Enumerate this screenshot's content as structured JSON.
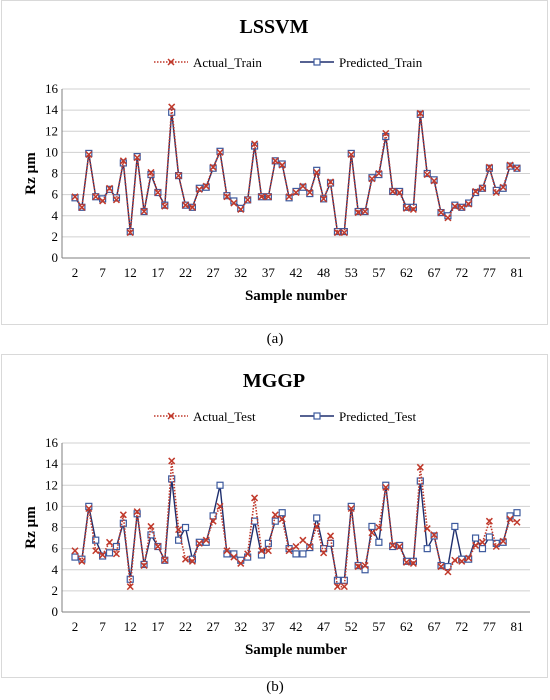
{
  "chart_data": [
    {
      "type": "line",
      "title": "LSSVM",
      "xlabel": "Sample number",
      "ylabel": "Rz µm",
      "ylim": [
        0,
        16
      ],
      "yticks": [
        "0",
        "2",
        "4",
        "6",
        "8",
        "10",
        "12",
        "14",
        "16"
      ],
      "xtick_labels": [
        "2",
        "7",
        "12",
        "17",
        "22",
        "27",
        "32",
        "37",
        "42",
        "48",
        "53",
        "57",
        "62",
        "67",
        "72",
        "77",
        "81"
      ],
      "legend_position": "top",
      "grid": true,
      "series": [
        {
          "name": "Actual_Train",
          "color": "#c0392b",
          "style": "dotted",
          "marker": "x",
          "values": [
            5.8,
            4.8,
            9.8,
            5.8,
            5.4,
            6.6,
            5.5,
            9.2,
            2.4,
            9.5,
            4.4,
            8.1,
            6.2,
            4.9,
            14.3,
            7.8,
            5.0,
            4.8,
            6.5,
            6.8,
            8.6,
            10.0,
            5.8,
            5.2,
            4.6,
            5.5,
            10.8,
            5.8,
            5.8,
            9.2,
            8.8,
            5.8,
            6.2,
            6.8,
            6.2,
            8.1,
            5.6,
            7.2,
            2.4,
            2.4,
            9.8,
            4.3,
            4.4,
            7.5,
            8.0,
            11.8,
            6.3,
            6.2,
            4.7,
            4.6,
            13.7,
            7.9,
            7.3,
            4.3,
            3.8,
            4.9,
            4.8,
            5.1,
            6.3,
            6.6,
            8.6,
            6.2,
            6.7,
            8.8,
            8.5
          ]
        },
        {
          "name": "Predicted_Train",
          "color": "#1f2f6e",
          "style": "solid",
          "marker": "square",
          "values": [
            5.7,
            4.8,
            9.9,
            5.8,
            5.6,
            6.5,
            5.7,
            9.0,
            2.5,
            9.6,
            4.4,
            7.9,
            6.2,
            5.0,
            13.8,
            7.8,
            5.0,
            4.8,
            6.6,
            6.7,
            8.5,
            10.1,
            5.9,
            5.4,
            4.7,
            5.5,
            10.6,
            5.8,
            5.8,
            9.2,
            8.9,
            5.7,
            6.3,
            6.7,
            6.1,
            8.3,
            5.6,
            7.1,
            2.5,
            2.5,
            9.9,
            4.4,
            4.4,
            7.6,
            7.9,
            11.5,
            6.3,
            6.3,
            4.8,
            4.8,
            13.6,
            8.0,
            7.4,
            4.3,
            4.0,
            5.0,
            4.8,
            5.2,
            6.2,
            6.6,
            8.5,
            6.4,
            6.6,
            8.7,
            8.5
          ]
        }
      ]
    },
    {
      "type": "line",
      "title": "MGGP",
      "xlabel": "Sample number",
      "ylabel": "Rz µm",
      "ylim": [
        0,
        16
      ],
      "yticks": [
        "0",
        "2",
        "4",
        "6",
        "8",
        "10",
        "12",
        "14",
        "16"
      ],
      "xtick_labels": [
        "2",
        "7",
        "12",
        "17",
        "22",
        "27",
        "32",
        "37",
        "42",
        "47",
        "52",
        "57",
        "62",
        "67",
        "72",
        "77",
        "81"
      ],
      "legend_position": "top",
      "grid": true,
      "series": [
        {
          "name": "Actual_Test",
          "color": "#c0392b",
          "style": "dotted",
          "marker": "x",
          "values": [
            5.8,
            4.8,
            9.8,
            5.8,
            5.4,
            6.6,
            5.5,
            9.2,
            2.4,
            9.5,
            4.4,
            8.1,
            6.2,
            4.9,
            14.3,
            7.8,
            5.0,
            4.8,
            6.5,
            6.8,
            8.6,
            10.0,
            5.8,
            5.2,
            4.6,
            5.5,
            10.8,
            5.8,
            5.8,
            9.2,
            8.8,
            5.8,
            6.2,
            6.8,
            6.2,
            8.1,
            5.6,
            7.2,
            2.4,
            2.4,
            9.8,
            4.3,
            4.4,
            7.5,
            8.0,
            11.8,
            6.3,
            6.2,
            4.7,
            4.6,
            13.7,
            7.9,
            7.3,
            4.3,
            3.8,
            4.9,
            4.8,
            5.1,
            6.3,
            6.6,
            8.6,
            6.2,
            6.7,
            8.8,
            8.5
          ]
        },
        {
          "name": "Predicted_Test",
          "color": "#1f2f6e",
          "style": "solid",
          "marker": "square",
          "values": [
            5.2,
            5.0,
            10.0,
            6.8,
            5.3,
            5.6,
            6.2,
            8.4,
            3.1,
            9.3,
            4.5,
            7.3,
            6.2,
            4.9,
            12.6,
            6.8,
            8.0,
            5.0,
            6.6,
            6.6,
            9.1,
            12.0,
            5.5,
            5.5,
            4.9,
            5.2,
            8.6,
            5.4,
            6.5,
            8.6,
            9.4,
            6.0,
            5.5,
            5.5,
            6.1,
            8.9,
            6.0,
            6.5,
            3.0,
            3.0,
            10.0,
            4.4,
            4.0,
            8.1,
            6.6,
            12.0,
            6.2,
            6.3,
            4.8,
            4.8,
            12.4,
            6.0,
            7.2,
            4.4,
            4.3,
            8.1,
            5.0,
            5.0,
            7.0,
            6.0,
            7.1,
            6.5,
            6.6,
            9.1,
            9.4
          ]
        }
      ]
    }
  ],
  "captions": [
    "(a)",
    "(b)"
  ]
}
